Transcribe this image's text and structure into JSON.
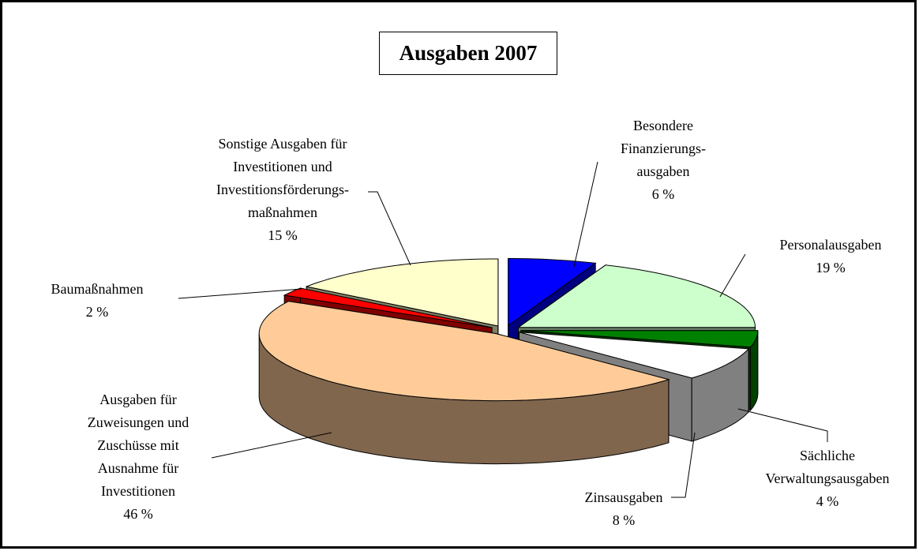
{
  "chart_data": {
    "type": "pie3d",
    "title": "Ausgaben 2007",
    "categories": [
      "Besondere\nFinanzierungs-\nausgaben",
      "Personalausgaben",
      "Sächliche\nVerwaltungsausgaben",
      "Zinsausgaben",
      "Ausgaben für\nZuweisungen und\nZuschüsse mit\nAusnahme für\nInvestitionen",
      "Baumaßnahmen",
      "Sonstige Ausgaben für\nInvestitionen und\nInvestitionsförderungs-\nmaßnahmen"
    ],
    "values": [
      6,
      19,
      4,
      8,
      46,
      2,
      15
    ],
    "value_labels": [
      "6 %",
      "19 %",
      "4 %",
      "8 %",
      "46 %",
      "2 %",
      "15 %"
    ],
    "colors": [
      "#0000ff",
      "#ccffcc",
      "#008000",
      "#ffffff",
      "#ffcc99",
      "#ff0000",
      "#ffffcc"
    ]
  }
}
